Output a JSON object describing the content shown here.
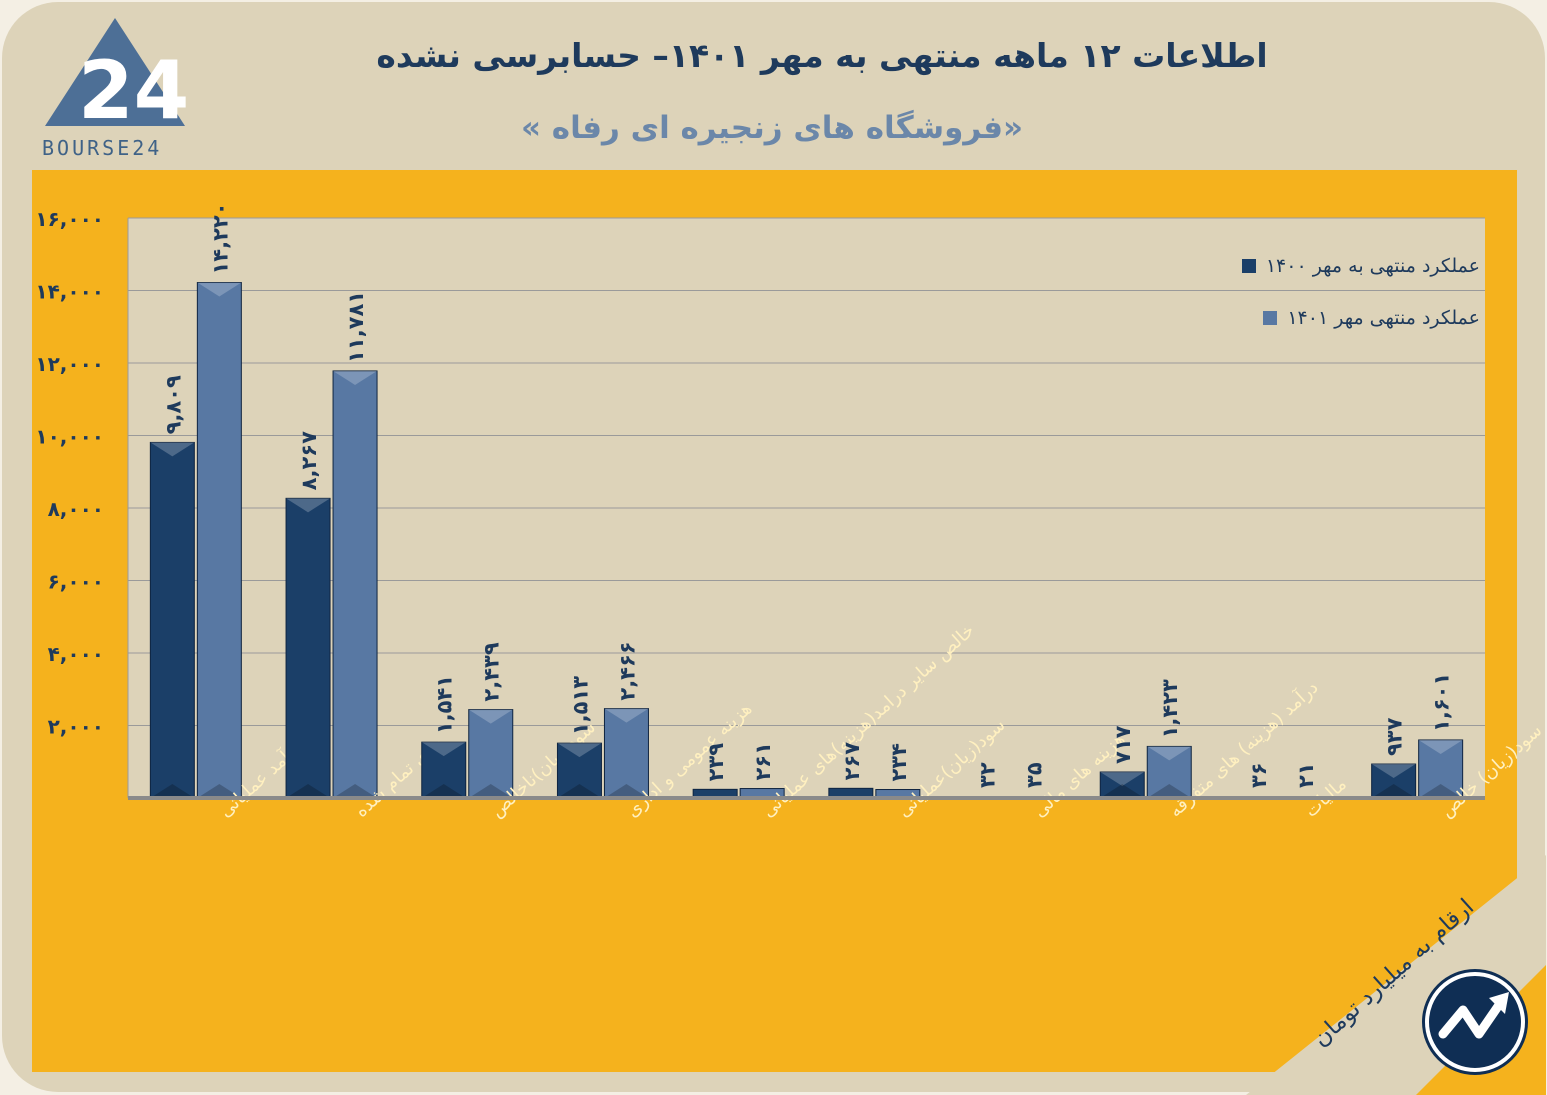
{
  "header": {
    "title": "اطلاعات ۱۲ ماهه منتهی به مهر ۱۴۰۱– حسابرسی نشده",
    "subtitle": "«فروشگاه های زنجیره ای رفاه »",
    "logo_text": "BOURSE24"
  },
  "legend": {
    "series1": "عملکرد منتهی به مهر ۱۴۰۰",
    "series2": "عملکرد منتهی مهر  ۱۴۰۱"
  },
  "note": {
    "unit": "ارقام به میلیارد تومان"
  },
  "colors": {
    "background": "#ddd3b9",
    "panel": "#f5b21d",
    "series1": "#1b3f68",
    "series2": "#5878a3",
    "title": "#1e3a5c",
    "xlabel": "#fff0c0"
  },
  "chart_data": {
    "type": "bar",
    "title": "«فروشگاه های زنجیره ای رفاه »",
    "xlabel": "",
    "ylabel": "",
    "ylim": [
      0,
      16000
    ],
    "yticks": [
      2000,
      4000,
      6000,
      8000,
      10000,
      12000,
      14000,
      16000
    ],
    "ytick_labels": [
      "۲,۰۰۰",
      "۴,۰۰۰",
      "۶,۰۰۰",
      "۸,۰۰۰",
      "۱۰,۰۰۰",
      "۱۲,۰۰۰",
      "۱۴,۰۰۰",
      "۱۶,۰۰۰"
    ],
    "grid": true,
    "legend_position": "top-right",
    "categories": [
      "درآمد عملیاتی",
      "بهای تمام شده",
      "سود(زیان)ناخالص",
      "هزینه عمومی و اداری",
      "خالص سایر درامد(هزینه)های عملیاتی",
      "سود(زیان)عملیاتی",
      "هزینه های مالی",
      "درآمد (هزینه) های متفرقه",
      "مالیات",
      "سود(زیان) خالص"
    ],
    "series": [
      {
        "name": "عملکرد منتهی به مهر ۱۴۰۰",
        "values": [
          9809,
          8267,
          1541,
          1513,
          239,
          267,
          32,
          717,
          36,
          937
        ],
        "labels": [
          "۹,۸۰۹",
          "۸,۲۶۷",
          "۱,۵۴۱",
          "۱,۵۱۳",
          "۲۳۹",
          "۲۶۷",
          "۳۲",
          "۷۱۷",
          "۳۶",
          "۹۳۷"
        ]
      },
      {
        "name": "عملکرد منتهی مهر  ۱۴۰۱",
        "values": [
          14220,
          11781,
          2439,
          2466,
          261,
          234,
          35,
          1423,
          21,
          1601
        ],
        "labels": [
          "۱۴,۲۲۰",
          "۱۱,۷۸۱",
          "۲,۴۳۹",
          "۲,۴۶۶",
          "۲۶۱",
          "۲۳۴",
          "۳۵",
          "۱,۴۲۳",
          "۲۱",
          "۱,۶۰۱"
        ]
      }
    ]
  }
}
